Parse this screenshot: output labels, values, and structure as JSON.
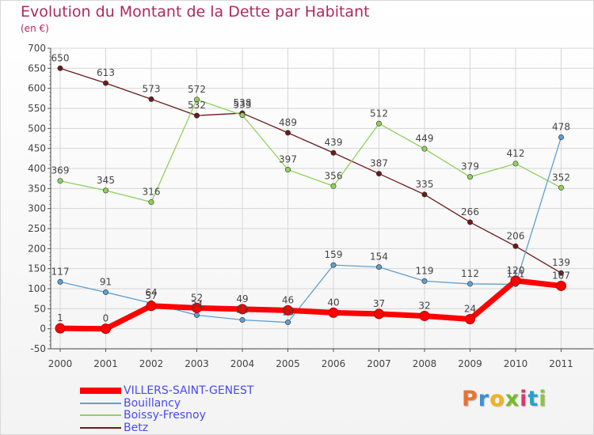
{
  "title": "Evolution du Montant de la Dette par Habitant",
  "unit_label": "(en €)",
  "logo_text": "Proxiti",
  "logo_colors": [
    "#e8742e",
    "#3b8fd6",
    "#f2b21b",
    "#7bb928",
    "#d43c6a",
    "#2aa0c8",
    "#8bc53f"
  ],
  "chart_data": {
    "type": "line",
    "x": [
      "2000",
      "2001",
      "2002",
      "2003",
      "2004",
      "2005",
      "2006",
      "2007",
      "2008",
      "2009",
      "2010",
      "2011"
    ],
    "ylim": [
      -50,
      700
    ],
    "yticks": [
      -50,
      0,
      50,
      100,
      150,
      200,
      250,
      300,
      350,
      400,
      450,
      500,
      550,
      600,
      650,
      700
    ],
    "grid": true,
    "legend_position": "bottom-left",
    "series": [
      {
        "name": "Betz",
        "color": "#6b1a1a",
        "values": [
          650,
          613,
          573,
          532,
          538,
          489,
          439,
          387,
          335,
          266,
          206,
          139
        ]
      },
      {
        "name": "Boissy-Fresnoy",
        "color": "#8fd15a",
        "values": [
          369,
          345,
          316,
          572,
          533,
          397,
          356,
          512,
          449,
          379,
          412,
          352
        ]
      },
      {
        "name": "Bouillancy",
        "color": "#5f9fd0",
        "values": [
          117,
          91,
          64,
          34,
          22,
          16,
          159,
          154,
          119,
          112,
          111,
          478
        ]
      },
      {
        "name": "VILLERS-SAINT-GENEST",
        "color": "#ff0000",
        "values": [
          1,
          0,
          57,
          52,
          49,
          46,
          40,
          37,
          32,
          24,
          120,
          107
        ]
      }
    ]
  }
}
